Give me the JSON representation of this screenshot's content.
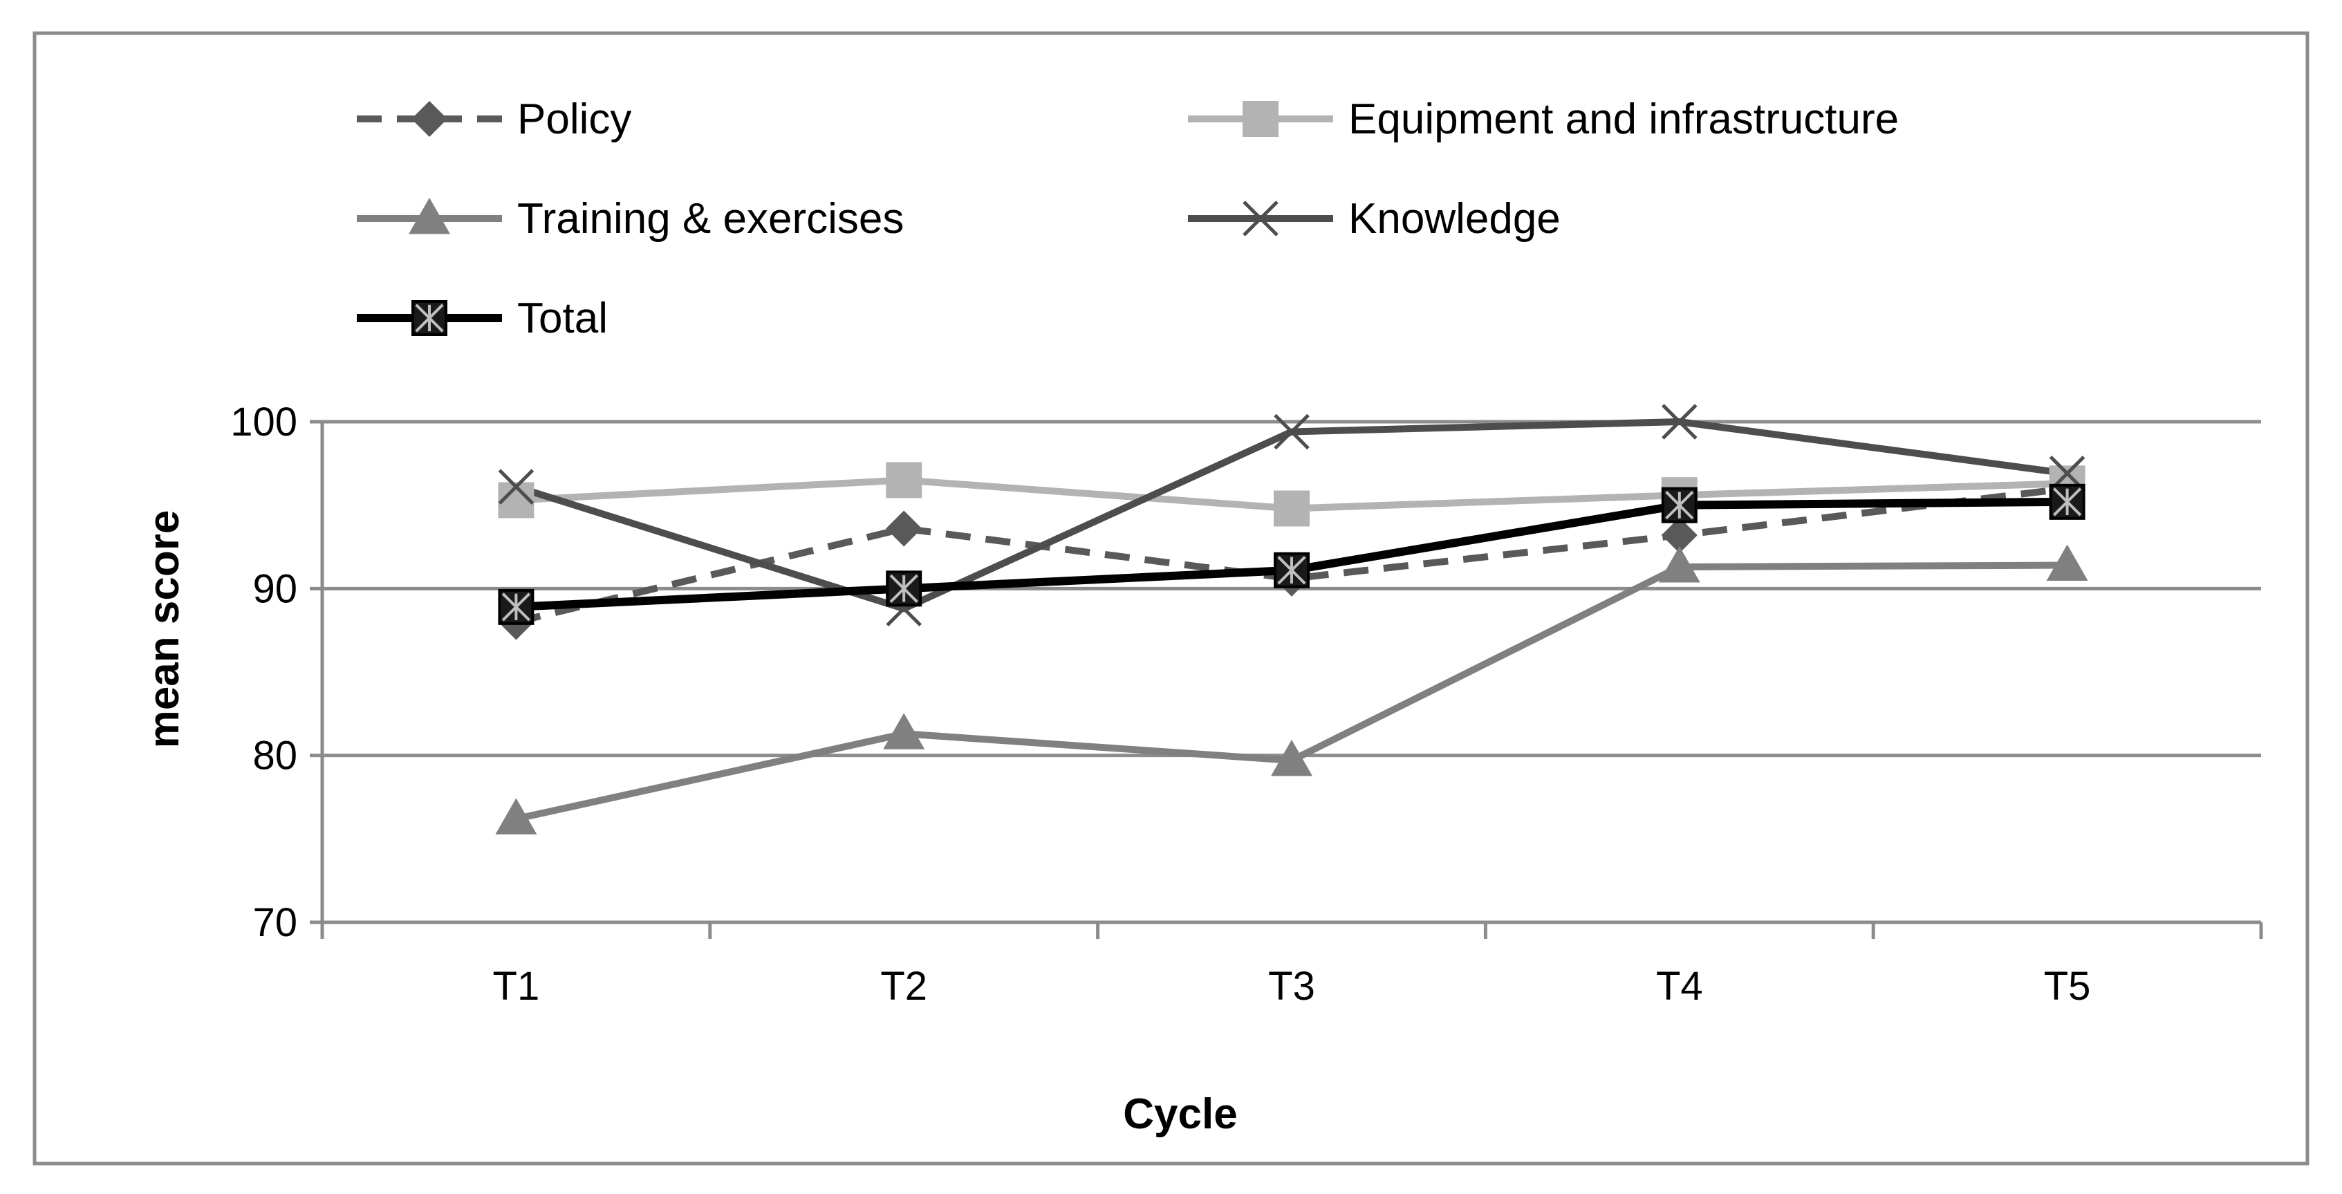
{
  "chart_data": {
    "type": "line",
    "title": "",
    "xlabel": "Cycle",
    "ylabel": "mean score",
    "categories": [
      "T1",
      "T2",
      "T3",
      "T4",
      "T5"
    ],
    "ylim": [
      70,
      100
    ],
    "yticks": [
      70,
      80,
      90,
      100
    ],
    "ytick_labels": [
      "70",
      "80",
      "90",
      "100"
    ],
    "grid": true,
    "legend_position": "top",
    "series": [
      {
        "name": "Policy",
        "values": [
          88.0,
          93.6,
          90.6,
          93.2,
          96.0
        ],
        "color": "#595959",
        "dash": true,
        "marker": "diamond"
      },
      {
        "name": "Equipment and infrastructure",
        "values": [
          95.3,
          96.5,
          94.8,
          95.6,
          96.3
        ],
        "color": "#b3b3b3",
        "dash": false,
        "marker": "square"
      },
      {
        "name": "Training & exercises",
        "values": [
          76.2,
          81.3,
          79.7,
          91.3,
          91.4
        ],
        "color": "#808080",
        "dash": false,
        "marker": "triangle"
      },
      {
        "name": "Knowledge",
        "values": [
          96.1,
          88.8,
          99.4,
          100.0,
          96.9
        ],
        "color": "#4d4d4d",
        "dash": false,
        "marker": "x"
      },
      {
        "name": "Total",
        "values": [
          88.9,
          90.0,
          91.1,
          95.0,
          95.2
        ],
        "color": "#000000",
        "dash": false,
        "marker": "boxed-star"
      }
    ]
  }
}
